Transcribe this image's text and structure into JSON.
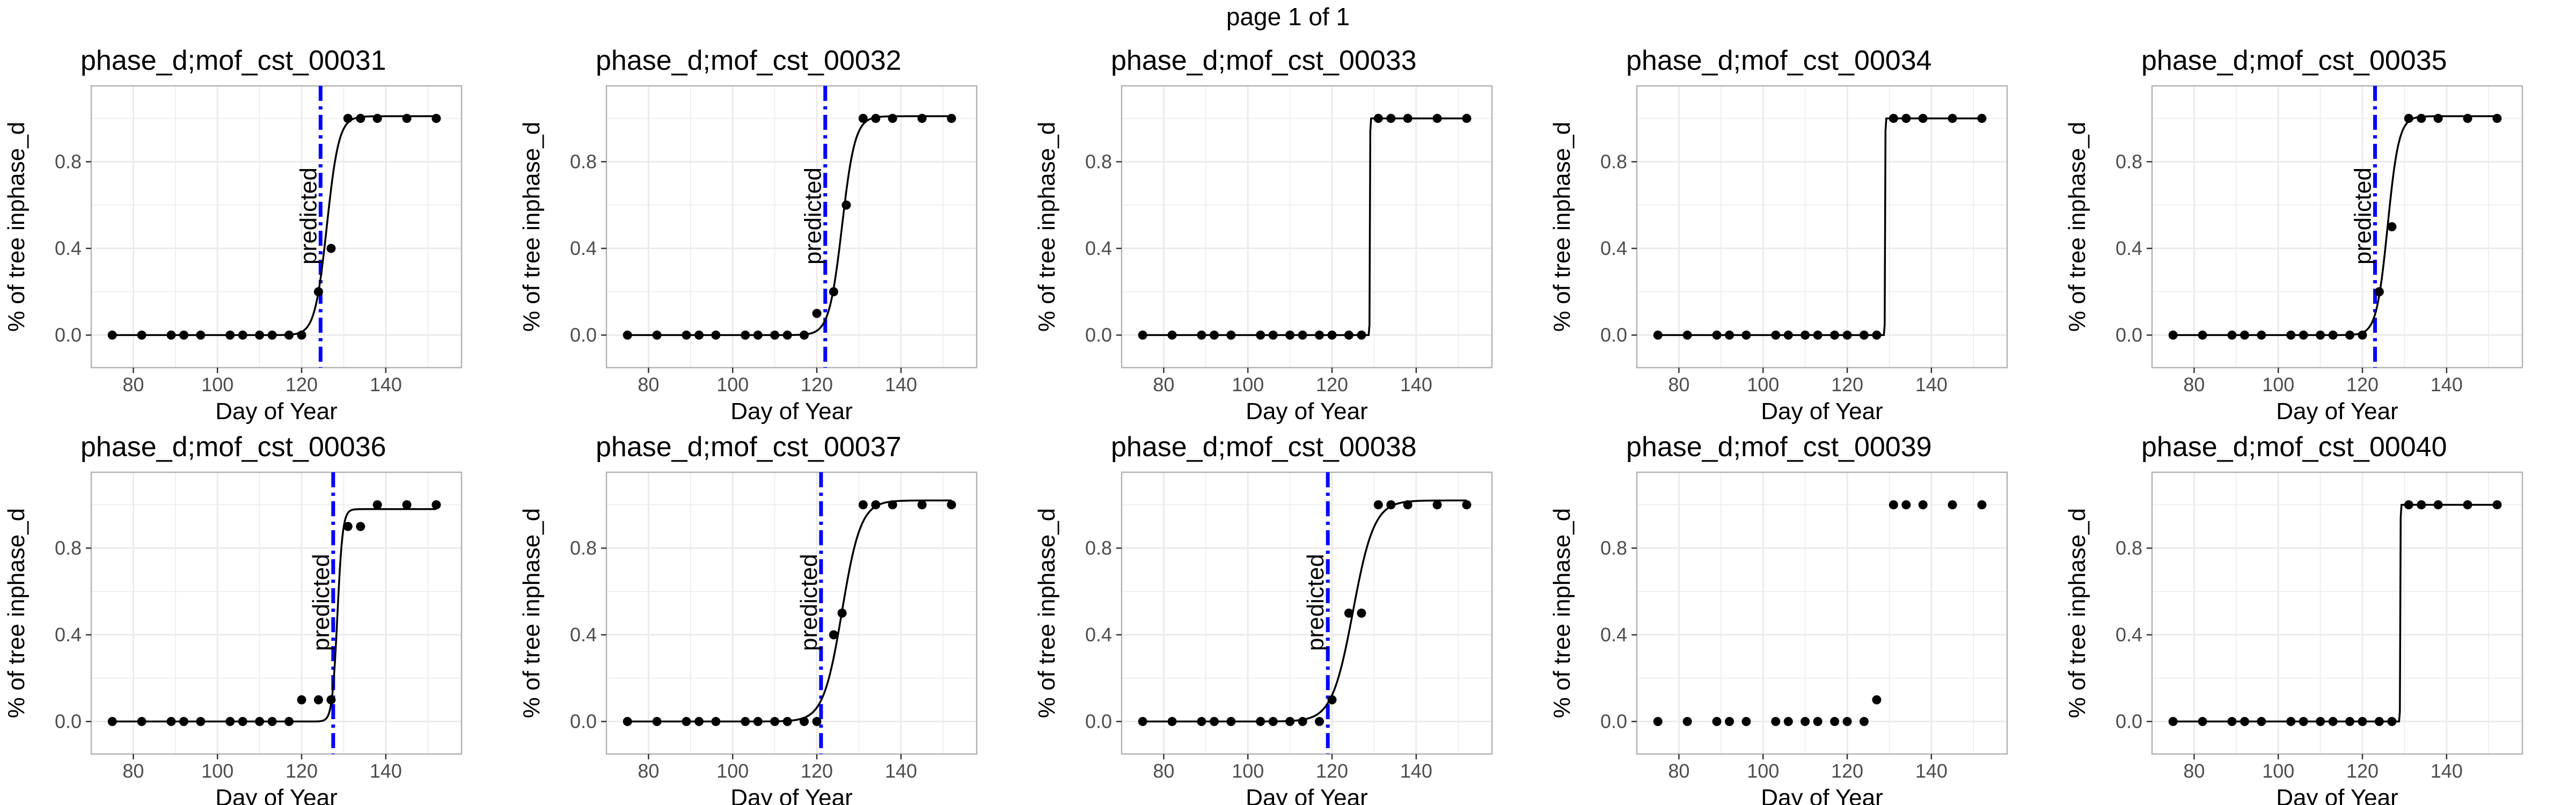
{
  "page_title": "page 1 of 1",
  "colors": {
    "predicted_line": "#0000ff",
    "points": "#000000",
    "curve": "#000000",
    "grid": "#ebebeb",
    "panel_border": "#b3b3b3"
  },
  "chart_data": [
    {
      "type": "scatter",
      "title": "phase_d;mof_cst_00031",
      "xlabel": "Day of Year",
      "ylabel": "% of tree inphase_d",
      "xlim": [
        70,
        158
      ],
      "ylim": [
        -0.15,
        1.15
      ],
      "xticks": [
        80,
        100,
        120,
        140
      ],
      "yticks": [
        0.0,
        0.4,
        0.8
      ],
      "xtick_labels": [
        "80",
        "100",
        "120",
        "140"
      ],
      "ytick_labels": [
        "0.0",
        "0.4",
        "0.8"
      ],
      "grid": true,
      "series": [
        {
          "role": "observed",
          "x": [
            75,
            82,
            89,
            92,
            96,
            103,
            106,
            110,
            113,
            117,
            120,
            124,
            127,
            131,
            134,
            138,
            145,
            152
          ],
          "y": [
            0,
            0,
            0,
            0,
            0,
            0,
            0,
            0,
            0,
            0,
            0,
            0.2,
            0.4,
            1,
            1,
            1,
            1,
            1
          ]
        },
        {
          "role": "fitted",
          "shape": "logistic",
          "midpoint": 126,
          "slope": 0.7,
          "upper": 1.01
        }
      ],
      "predicted": {
        "x": 124.5,
        "label": "predicted"
      }
    },
    {
      "type": "scatter",
      "title": "phase_d;mof_cst_00032",
      "xlabel": "Day of Year",
      "ylabel": "% of tree inphase_d",
      "xlim": [
        70,
        158
      ],
      "ylim": [
        -0.15,
        1.15
      ],
      "xticks": [
        80,
        100,
        120,
        140
      ],
      "yticks": [
        0.0,
        0.4,
        0.8
      ],
      "xtick_labels": [
        "80",
        "100",
        "120",
        "140"
      ],
      "ytick_labels": [
        "0.0",
        "0.4",
        "0.8"
      ],
      "grid": true,
      "series": [
        {
          "role": "observed",
          "x": [
            75,
            82,
            89,
            92,
            96,
            103,
            106,
            110,
            113,
            117,
            120,
            124,
            127,
            131,
            134,
            138,
            145,
            152
          ],
          "y": [
            0,
            0,
            0,
            0,
            0,
            0,
            0,
            0,
            0,
            0,
            0.1,
            0.2,
            0.6,
            1,
            1,
            1,
            1,
            1
          ]
        },
        {
          "role": "fitted",
          "shape": "logistic",
          "midpoint": 126,
          "slope": 0.65,
          "upper": 1.01
        }
      ],
      "predicted": {
        "x": 122,
        "label": "predicted"
      }
    },
    {
      "type": "scatter",
      "title": "phase_d;mof_cst_00033",
      "xlabel": "Day of Year",
      "ylabel": "% of tree inphase_d",
      "xlim": [
        70,
        158
      ],
      "ylim": [
        -0.15,
        1.15
      ],
      "xticks": [
        80,
        100,
        120,
        140
      ],
      "yticks": [
        0.0,
        0.4,
        0.8
      ],
      "xtick_labels": [
        "80",
        "100",
        "120",
        "140"
      ],
      "ytick_labels": [
        "0.0",
        "0.4",
        "0.8"
      ],
      "grid": true,
      "series": [
        {
          "role": "observed",
          "x": [
            75,
            82,
            89,
            92,
            96,
            103,
            106,
            110,
            113,
            117,
            120,
            124,
            127,
            131,
            134,
            138,
            145,
            152
          ],
          "y": [
            0,
            0,
            0,
            0,
            0,
            0,
            0,
            0,
            0,
            0,
            0,
            0,
            0,
            1,
            1,
            1,
            1,
            1
          ]
        },
        {
          "role": "fitted",
          "shape": "logistic",
          "midpoint": 129,
          "slope": 30,
          "upper": 1.0
        }
      ],
      "predicted": null
    },
    {
      "type": "scatter",
      "title": "phase_d;mof_cst_00034",
      "xlabel": "Day of Year",
      "ylabel": "% of tree inphase_d",
      "xlim": [
        70,
        158
      ],
      "ylim": [
        -0.15,
        1.15
      ],
      "xticks": [
        80,
        100,
        120,
        140
      ],
      "yticks": [
        0.0,
        0.4,
        0.8
      ],
      "xtick_labels": [
        "80",
        "100",
        "120",
        "140"
      ],
      "ytick_labels": [
        "0.0",
        "0.4",
        "0.8"
      ],
      "grid": true,
      "series": [
        {
          "role": "observed",
          "x": [
            75,
            82,
            89,
            92,
            96,
            103,
            106,
            110,
            113,
            117,
            120,
            124,
            127,
            131,
            134,
            138,
            145,
            152
          ],
          "y": [
            0,
            0,
            0,
            0,
            0,
            0,
            0,
            0,
            0,
            0,
            0,
            0,
            0,
            1,
            1,
            1,
            1,
            1
          ]
        },
        {
          "role": "fitted",
          "shape": "logistic",
          "midpoint": 129,
          "slope": 30,
          "upper": 1.0
        }
      ],
      "predicted": null
    },
    {
      "type": "scatter",
      "title": "phase_d;mof_cst_00035",
      "xlabel": "Day of Year",
      "ylabel": "% of tree inphase_d",
      "xlim": [
        70,
        158
      ],
      "ylim": [
        -0.15,
        1.15
      ],
      "xticks": [
        80,
        100,
        120,
        140
      ],
      "yticks": [
        0.0,
        0.4,
        0.8
      ],
      "xtick_labels": [
        "80",
        "100",
        "120",
        "140"
      ],
      "ytick_labels": [
        "0.0",
        "0.4",
        "0.8"
      ],
      "grid": true,
      "series": [
        {
          "role": "observed",
          "x": [
            75,
            82,
            89,
            92,
            96,
            103,
            106,
            110,
            113,
            117,
            120,
            124,
            127,
            131,
            134,
            138,
            145,
            152
          ],
          "y": [
            0,
            0,
            0,
            0,
            0,
            0,
            0,
            0,
            0,
            0,
            0,
            0.2,
            0.5,
            1,
            1,
            1,
            1,
            1
          ]
        },
        {
          "role": "fitted",
          "shape": "logistic",
          "midpoint": 126,
          "slope": 0.75,
          "upper": 1.01
        }
      ],
      "predicted": {
        "x": 123,
        "label": "predicted"
      }
    },
    {
      "type": "scatter",
      "title": "phase_d;mof_cst_00036",
      "xlabel": "Day of Year",
      "ylabel": "% of tree inphase_d",
      "xlim": [
        70,
        158
      ],
      "ylim": [
        -0.15,
        1.15
      ],
      "xticks": [
        80,
        100,
        120,
        140
      ],
      "yticks": [
        0.0,
        0.4,
        0.8
      ],
      "xtick_labels": [
        "80",
        "100",
        "120",
        "140"
      ],
      "ytick_labels": [
        "0.0",
        "0.4",
        "0.8"
      ],
      "grid": true,
      "series": [
        {
          "role": "observed",
          "x": [
            75,
            82,
            89,
            92,
            96,
            103,
            106,
            110,
            113,
            117,
            120,
            124,
            127,
            131,
            134,
            138,
            145,
            152
          ],
          "y": [
            0,
            0,
            0,
            0,
            0,
            0,
            0,
            0,
            0,
            0,
            0.1,
            0.1,
            0.1,
            0.9,
            0.9,
            1,
            1,
            1
          ]
        },
        {
          "role": "fitted",
          "shape": "logistic",
          "midpoint": 128.5,
          "slope": 1.6,
          "upper": 0.98
        }
      ],
      "predicted": {
        "x": 127.5,
        "label": "predicted"
      }
    },
    {
      "type": "scatter",
      "title": "phase_d;mof_cst_00037",
      "xlabel": "Day of Year",
      "ylabel": "% of tree inphase_d",
      "xlim": [
        70,
        158
      ],
      "ylim": [
        -0.15,
        1.15
      ],
      "xticks": [
        80,
        100,
        120,
        140
      ],
      "yticks": [
        0.0,
        0.4,
        0.8
      ],
      "xtick_labels": [
        "80",
        "100",
        "120",
        "140"
      ],
      "ytick_labels": [
        "0.0",
        "0.4",
        "0.8"
      ],
      "grid": true,
      "series": [
        {
          "role": "observed",
          "x": [
            75,
            82,
            89,
            92,
            96,
            103,
            106,
            110,
            113,
            117,
            120,
            124,
            126,
            131,
            134,
            138,
            145,
            152
          ],
          "y": [
            0,
            0,
            0,
            0,
            0,
            0,
            0,
            0,
            0,
            0,
            0,
            0.4,
            0.5,
            1,
            1,
            1,
            1,
            1
          ]
        },
        {
          "role": "fitted",
          "shape": "logistic",
          "midpoint": 126,
          "slope": 0.45,
          "upper": 1.02
        }
      ],
      "predicted": {
        "x": 121,
        "label": "predicted"
      }
    },
    {
      "type": "scatter",
      "title": "phase_d;mof_cst_00038",
      "xlabel": "Day of Year",
      "ylabel": "% of tree inphase_d",
      "xlim": [
        70,
        158
      ],
      "ylim": [
        -0.15,
        1.15
      ],
      "xticks": [
        80,
        100,
        120,
        140
      ],
      "yticks": [
        0.0,
        0.4,
        0.8
      ],
      "xtick_labels": [
        "80",
        "100",
        "120",
        "140"
      ],
      "ytick_labels": [
        "0.0",
        "0.4",
        "0.8"
      ],
      "grid": true,
      "series": [
        {
          "role": "observed",
          "x": [
            75,
            82,
            89,
            92,
            96,
            103,
            106,
            110,
            113,
            117,
            120,
            124,
            127,
            131,
            134,
            138,
            145,
            152
          ],
          "y": [
            0,
            0,
            0,
            0,
            0,
            0,
            0,
            0,
            0,
            0,
            0.1,
            0.5,
            0.5,
            1,
            1,
            1,
            1,
            1
          ]
        },
        {
          "role": "fitted",
          "shape": "logistic",
          "midpoint": 125,
          "slope": 0.4,
          "upper": 1.02
        }
      ],
      "predicted": {
        "x": 119,
        "label": "predicted"
      }
    },
    {
      "type": "scatter",
      "title": "phase_d;mof_cst_00039",
      "xlabel": "Day of Year",
      "ylabel": "% of tree inphase_d",
      "xlim": [
        70,
        158
      ],
      "ylim": [
        -0.15,
        1.15
      ],
      "xticks": [
        80,
        100,
        120,
        140
      ],
      "yticks": [
        0.0,
        0.4,
        0.8
      ],
      "xtick_labels": [
        "80",
        "100",
        "120",
        "140"
      ],
      "ytick_labels": [
        "0.0",
        "0.4",
        "0.8"
      ],
      "grid": true,
      "series": [
        {
          "role": "observed",
          "x": [
            75,
            82,
            89,
            92,
            96,
            103,
            106,
            110,
            113,
            117,
            120,
            124,
            127,
            131,
            134,
            138,
            145,
            152
          ],
          "y": [
            0,
            0,
            0,
            0,
            0,
            0,
            0,
            0,
            0,
            0,
            0,
            0,
            0.1,
            1,
            1,
            1,
            1,
            1
          ]
        }
      ],
      "predicted": null
    },
    {
      "type": "scatter",
      "title": "phase_d;mof_cst_00040",
      "xlabel": "Day of Year",
      "ylabel": "% of tree inphase_d",
      "xlim": [
        70,
        158
      ],
      "ylim": [
        -0.15,
        1.15
      ],
      "xticks": [
        80,
        100,
        120,
        140
      ],
      "yticks": [
        0.0,
        0.4,
        0.8
      ],
      "xtick_labels": [
        "80",
        "100",
        "120",
        "140"
      ],
      "ytick_labels": [
        "0.0",
        "0.4",
        "0.8"
      ],
      "grid": true,
      "series": [
        {
          "role": "observed",
          "x": [
            75,
            82,
            89,
            92,
            96,
            103,
            106,
            110,
            113,
            117,
            120,
            124,
            127,
            131,
            134,
            138,
            145,
            152
          ],
          "y": [
            0,
            0,
            0,
            0,
            0,
            0,
            0,
            0,
            0,
            0,
            0,
            0,
            0,
            1,
            1,
            1,
            1,
            1
          ]
        },
        {
          "role": "fitted",
          "shape": "logistic",
          "midpoint": 129,
          "slope": 30,
          "upper": 1.0
        }
      ],
      "predicted": null
    }
  ]
}
